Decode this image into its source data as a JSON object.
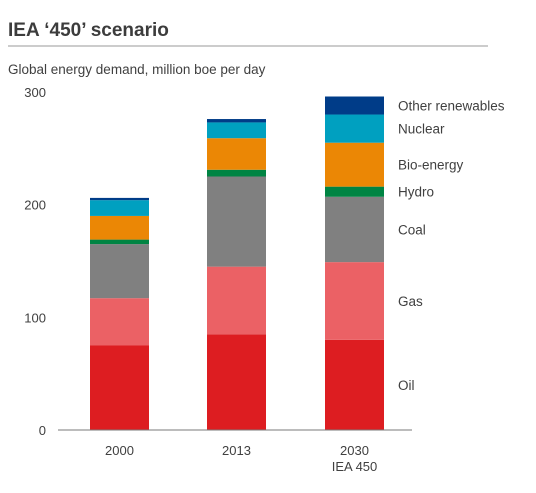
{
  "chart_data": {
    "type": "bar",
    "stacked": true,
    "title": "IEA ‘450’ scenario",
    "subtitle": "Global energy demand, million boe per day",
    "categories": [
      [
        "2000"
      ],
      [
        "2013"
      ],
      [
        "2030",
        "IEA 450"
      ]
    ],
    "ylim": [
      0,
      300
    ],
    "yticks": [
      0,
      100,
      200,
      300
    ],
    "grid": false,
    "legend_placement": "right",
    "series": [
      {
        "name": "Oil",
        "color": "#dd1d21",
        "values": [
          75,
          85,
          80
        ]
      },
      {
        "name": "Gas",
        "color": "#eb6165",
        "values": [
          42,
          60,
          69
        ]
      },
      {
        "name": "Coal",
        "color": "#808080",
        "values": [
          48,
          80,
          58
        ]
      },
      {
        "name": "Hydro",
        "color": "#008443",
        "values": [
          4,
          6,
          9
        ]
      },
      {
        "name": "Bio-energy",
        "color": "#eb8705",
        "values": [
          21,
          28,
          39
        ]
      },
      {
        "name": "Nuclear",
        "color": "#00a0c0",
        "values": [
          14,
          14,
          25
        ]
      },
      {
        "name": "Other renewables",
        "color": "#003c88",
        "values": [
          2,
          3,
          16
        ]
      }
    ]
  }
}
